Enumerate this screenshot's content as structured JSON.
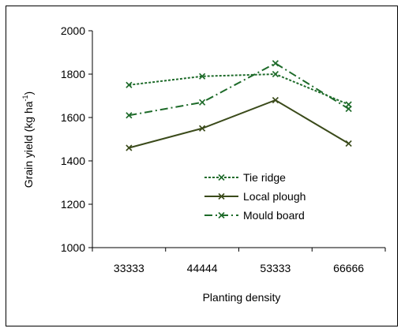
{
  "chart_data": {
    "type": "line",
    "title": "",
    "xlabel": "Planting density",
    "ylabel": "Grain yield (kg ha",
    "ylabel_sup": "-1",
    "ylabel_end": ")",
    "categories": [
      "33333",
      "44444",
      "53333",
      "66666"
    ],
    "ylim": [
      1000,
      2000
    ],
    "yticks": [
      1000,
      1200,
      1400,
      1600,
      1800,
      2000
    ],
    "grid": false,
    "legend_position": "center-right",
    "series": [
      {
        "name": "Tie ridge",
        "values": [
          1750,
          1790,
          1800,
          1660
        ],
        "style": "dotted",
        "color": "#1e6b2a"
      },
      {
        "name": "Local plough",
        "values": [
          1460,
          1550,
          1680,
          1480
        ],
        "style": "solid",
        "color": "#3a4a1a"
      },
      {
        "name": "Mould board",
        "values": [
          1610,
          1670,
          1850,
          1640
        ],
        "style": "dashdot",
        "color": "#1e6b2a"
      }
    ]
  }
}
